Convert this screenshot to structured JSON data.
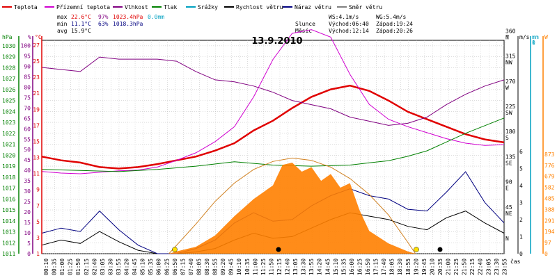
{
  "chart_data": {
    "type": "line",
    "title": "13.9.2010",
    "xlabel": "čas",
    "x_ticks": [
      "00:10",
      "00:35",
      "01:00",
      "01:25",
      "01:50",
      "02:15",
      "02:40",
      "03:05",
      "03:30",
      "03:55",
      "04:20",
      "04:45",
      "05:10",
      "05:35",
      "06:00",
      "06:25",
      "06:50",
      "07:15",
      "07:40",
      "08:05",
      "08:30",
      "08:55",
      "09:20",
      "09:45",
      "10:10",
      "10:35",
      "11:00",
      "11:25",
      "11:50",
      "12:15",
      "12:40",
      "13:05",
      "13:30",
      "13:55",
      "14:20",
      "14:45",
      "15:10",
      "15:35",
      "16:00",
      "16:25",
      "16:50",
      "17:15",
      "17:40",
      "18:05",
      "18:30",
      "18:55",
      "19:20",
      "19:45",
      "20:10",
      "20:35",
      "21:00",
      "21:25",
      "21:50",
      "22:15",
      "22:40",
      "23:05",
      "23:30",
      "23:55"
    ],
    "legend": [
      {
        "name": "Teplota",
        "color": "#e00000"
      },
      {
        "name": "Přízemní teplota",
        "color": "#d000d0"
      },
      {
        "name": "Vlhkost",
        "color": "#800080"
      },
      {
        "name": "Tlak",
        "color": "#008000"
      },
      {
        "name": "Srážky",
        "color": "#00a0c0"
      },
      {
        "name": "Rychlost větru",
        "color": "#000000"
      },
      {
        "name": "Náraz větru",
        "color": "#000080"
      },
      {
        "name": "Směr větru",
        "color": "#808080"
      }
    ],
    "stats": {
      "max": {
        "label": "max",
        "temp": "22.6°C",
        "hum": "97%",
        "press": "1023.4hPa",
        "rain": "0.0mm"
      },
      "min": {
        "label": "min",
        "temp": "11.1°C",
        "hum": "63%",
        "press": "1018.3hPa"
      },
      "avg": {
        "label": "avg",
        "temp": "15.9°C"
      }
    },
    "info": {
      "ws": "WS:4.1m/s",
      "wg": "WG:5.4m/s",
      "sun_label": "Slunce",
      "sun_rise": "Východ:06:40",
      "sun_set": "Západ:19:24",
      "moon_label": "Měsíc",
      "moon_rise": "Východ:12:14",
      "moon_set": "Západ:20:26"
    },
    "axes": {
      "hpa": {
        "label": "hPa",
        "color": "#008000",
        "ticks": [
          "1011",
          "1012",
          "1013",
          "1014",
          "1015",
          "1016",
          "1017",
          "1018",
          "1019",
          "1020",
          "1021",
          "1022",
          "1023",
          "1024",
          "1025",
          "1026",
          "1027",
          "1028",
          "1029",
          "1030"
        ]
      },
      "pct": {
        "label": "%",
        "color": "#800080",
        "ticks": [
          "0",
          "5",
          "10",
          "15",
          "20",
          "25",
          "30",
          "35",
          "40",
          "45",
          "50",
          "55",
          "60",
          "65",
          "70",
          "75",
          "80",
          "85",
          "90",
          "95",
          "100"
        ]
      },
      "degc": {
        "label": "°C",
        "color": "#e00000",
        "ticks": [
          "1",
          "3",
          "5",
          "7",
          "9",
          "11",
          "13",
          "15",
          "17",
          "19",
          "21",
          "23",
          "25",
          "27"
        ]
      },
      "dir": {
        "label": "°",
        "ticks": [
          {
            "v": "0",
            "d": "N"
          },
          {
            "v": "45",
            "d": "NE"
          },
          {
            "v": "90",
            "d": "E"
          },
          {
            "v": "135",
            "d": "SE"
          },
          {
            "v": "180",
            "d": "S"
          },
          {
            "v": "225",
            "d": "SW"
          },
          {
            "v": "270",
            "d": "W"
          },
          {
            "v": "315",
            "d": "NW"
          },
          {
            "v": "360",
            "d": "N"
          }
        ]
      },
      "ms": {
        "label": "m/s",
        "ticks": [
          "0",
          "1",
          "2",
          "3",
          "4",
          "5",
          "6"
        ]
      },
      "mm": {
        "label": "mm",
        "color": "#00a0c0",
        "ticks": [
          "0",
          "1"
        ]
      },
      "wm2": {
        "label": "W",
        "color": "#ff8000",
        "ticks": [
          "0",
          "97",
          "194",
          "291",
          "388",
          "485",
          "582",
          "679",
          "776",
          "873"
        ]
      }
    },
    "series": [
      {
        "name": "Teplota",
        "unit": "°C",
        "color": "#e00000",
        "x": [
          0,
          1,
          2,
          3,
          4,
          5,
          6,
          7,
          8,
          9,
          10,
          11,
          12,
          13,
          14,
          15,
          16,
          17,
          18,
          19,
          20,
          21,
          22,
          23,
          24
        ],
        "values": [
          13.0,
          12.5,
          12.2,
          11.6,
          11.4,
          11.6,
          12.0,
          12.5,
          13.0,
          13.8,
          14.8,
          16.5,
          17.8,
          19.5,
          21.0,
          22.0,
          22.5,
          21.8,
          20.5,
          19.0,
          18.0,
          17.0,
          16.0,
          15.3,
          14.9
        ]
      },
      {
        "name": "Přízemní teplota",
        "unit": "°C",
        "color": "#d000d0",
        "x": [
          0,
          1,
          2,
          3,
          4,
          5,
          6,
          7,
          8,
          9,
          10,
          11,
          12,
          13,
          14,
          15,
          16,
          17,
          18,
          19,
          20,
          21,
          22,
          23,
          24
        ],
        "values": [
          11.0,
          10.8,
          10.7,
          10.9,
          11.1,
          11.2,
          11.6,
          12.5,
          13.5,
          15.0,
          17.0,
          21.0,
          26.0,
          29.5,
          30.0,
          29.0,
          24.0,
          20.0,
          18.0,
          17.0,
          16.2,
          15.4,
          14.8,
          14.5,
          14.6
        ]
      },
      {
        "name": "Vlhkost",
        "unit": "%",
        "color": "#800080",
        "x": [
          0,
          1,
          2,
          3,
          4,
          5,
          6,
          7,
          8,
          9,
          10,
          11,
          12,
          13,
          14,
          15,
          16,
          17,
          18,
          19,
          20,
          21,
          22,
          23,
          24
        ],
        "values": [
          90,
          89,
          88,
          95,
          94,
          94,
          94,
          93,
          88,
          84,
          83,
          81,
          78,
          74,
          72,
          70,
          66,
          64,
          62,
          63,
          66,
          72,
          77,
          81,
          84
        ]
      },
      {
        "name": "Tlak",
        "unit": "hPa",
        "color": "#008000",
        "x": [
          0,
          2,
          4,
          6,
          8,
          10,
          12,
          14,
          16,
          17,
          18,
          19,
          20,
          21,
          22,
          23,
          24
        ],
        "values": [
          1018.7,
          1018.6,
          1018.5,
          1018.7,
          1019.0,
          1019.4,
          1019.1,
          1019.0,
          1019.1,
          1019.3,
          1019.5,
          1019.9,
          1020.4,
          1021.2,
          1022.0,
          1022.7,
          1023.4
        ]
      },
      {
        "name": "Rychlost větru",
        "unit": "m/s",
        "color": "#000000",
        "x": [
          0,
          1,
          2,
          3,
          4,
          5,
          6,
          7,
          8,
          9,
          10,
          11,
          12,
          13,
          14,
          15,
          16,
          17,
          18,
          19,
          20,
          21,
          22,
          23,
          24
        ],
        "values": [
          0.5,
          0.8,
          0.6,
          1.3,
          0.7,
          0.2,
          0.0,
          0.0,
          0.1,
          0.3,
          0.8,
          1.2,
          0.9,
          1.0,
          1.5,
          2.0,
          2.4,
          2.2,
          2.0,
          1.6,
          1.4,
          2.1,
          2.5,
          1.8,
          1.2
        ]
      },
      {
        "name": "Náraz větru",
        "unit": "m/s",
        "color": "#000080",
        "x": [
          0,
          1,
          2,
          3,
          4,
          5,
          6,
          7,
          8,
          9,
          10,
          11,
          12,
          13,
          14,
          15,
          16,
          17,
          18,
          19,
          20,
          21,
          22,
          23,
          24
        ],
        "values": [
          1.2,
          1.5,
          1.3,
          2.5,
          1.4,
          0.5,
          0.0,
          0.0,
          0.3,
          0.8,
          1.8,
          2.4,
          1.9,
          2.0,
          2.8,
          3.4,
          3.8,
          3.4,
          3.2,
          2.6,
          2.5,
          3.6,
          4.8,
          3.0,
          1.8
        ]
      },
      {
        "name": "Sluneční záření",
        "unit": "W",
        "color": "#ff8000",
        "x": [
          6.6,
          7,
          8,
          9,
          10,
          11,
          12,
          12.5,
          13,
          13.5,
          14,
          14.5,
          15,
          15.5,
          16,
          16.5,
          17,
          18,
          19,
          19.4
        ],
        "values": [
          0,
          20,
          60,
          160,
          330,
          480,
          600,
          780,
          800,
          720,
          760,
          640,
          700,
          580,
          620,
          380,
          200,
          90,
          20,
          0
        ]
      },
      {
        "name": "Teoretické záření",
        "unit": "W",
        "color": "#d08020",
        "x": [
          6.6,
          8,
          9,
          10,
          11,
          12,
          13,
          14,
          15,
          16,
          17,
          18,
          19,
          19.4
        ],
        "values": [
          0,
          260,
          460,
          620,
          740,
          810,
          840,
          820,
          760,
          660,
          520,
          340,
          100,
          0
        ]
      }
    ]
  }
}
